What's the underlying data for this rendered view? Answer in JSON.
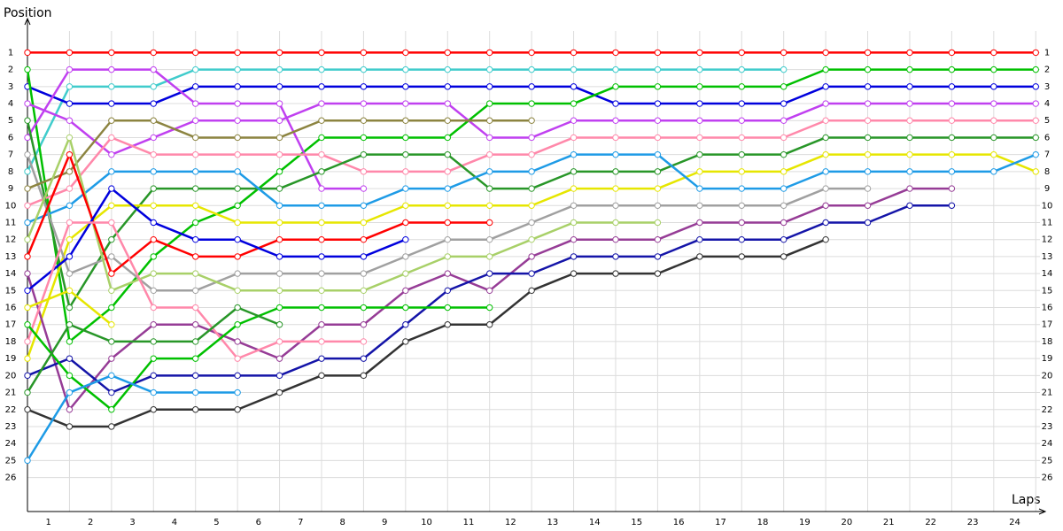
{
  "chart_data": {
    "type": "line",
    "y_label": "Position",
    "x_label": "Laps",
    "x": [
      0,
      1,
      2,
      3,
      4,
      5,
      6,
      7,
      8,
      9,
      10,
      11,
      12,
      13,
      14,
      15,
      16,
      17,
      18,
      19,
      20,
      21,
      22,
      23,
      24
    ],
    "xlim": [
      0,
      24.1
    ],
    "xticks": [
      1,
      2,
      3,
      4,
      5,
      6,
      7,
      8,
      9,
      10,
      11,
      12,
      13,
      14,
      15,
      16,
      17,
      18,
      19,
      20,
      21,
      22,
      23,
      24
    ],
    "ylim": [
      28,
      -1
    ],
    "inverted": true,
    "yticks": [
      1,
      2,
      3,
      4,
      5,
      6,
      7,
      8,
      9,
      10,
      11,
      12,
      13,
      14,
      15,
      16,
      17,
      18,
      19,
      20,
      21,
      22,
      23,
      24,
      25,
      26
    ],
    "grid": true,
    "series": [
      {
        "color": "#ff0000",
        "values": [
          1,
          1,
          1,
          1,
          1,
          1,
          1,
          1,
          1,
          1,
          1,
          1,
          1,
          1,
          1,
          1,
          1,
          1,
          1,
          1,
          1,
          1,
          1,
          1,
          1
        ]
      },
      {
        "color": "#40cccc",
        "values": [
          8,
          3,
          3,
          3,
          2,
          2,
          2,
          2,
          2,
          2,
          2,
          2,
          2,
          2,
          2,
          2,
          2,
          2,
          2,
          null,
          null,
          null,
          null,
          null,
          null
        ]
      },
      {
        "color": "#0000dd",
        "values": [
          3,
          4,
          4,
          4,
          3,
          3,
          3,
          3,
          3,
          3,
          3,
          3,
          3,
          3,
          4,
          4,
          4,
          4,
          4,
          3,
          3,
          3,
          3,
          3,
          3
        ]
      },
      {
        "color": "#00c000",
        "values": [
          2,
          18,
          16,
          13,
          11,
          10,
          8,
          6,
          6,
          6,
          6,
          4,
          4,
          4,
          3,
          3,
          3,
          3,
          3,
          2,
          2,
          2,
          2,
          2,
          2
        ]
      },
      {
        "color": "#c040f0",
        "values": [
          6,
          2,
          2,
          2,
          4,
          4,
          4,
          9,
          9,
          null,
          null,
          null,
          null,
          null,
          null,
          null,
          null,
          null,
          null,
          null,
          null,
          null,
          null,
          null,
          null
        ]
      },
      {
        "color": "#c040f0",
        "values": [
          4,
          5,
          7,
          6,
          5,
          5,
          5,
          4,
          4,
          4,
          4,
          6,
          6,
          5,
          5,
          5,
          5,
          5,
          5,
          4,
          4,
          4,
          4,
          4,
          4
        ]
      },
      {
        "color": "#ff88aa",
        "values": [
          10,
          9,
          6,
          7,
          7,
          7,
          7,
          7,
          8,
          8,
          8,
          7,
          7,
          6,
          6,
          6,
          6,
          6,
          6,
          5,
          5,
          5,
          5,
          5,
          5
        ]
      },
      {
        "color": "#289628",
        "values": [
          5,
          16,
          12,
          9,
          9,
          9,
          9,
          8,
          7,
          7,
          7,
          9,
          9,
          8,
          8,
          8,
          7,
          7,
          7,
          6,
          6,
          6,
          6,
          6,
          6
        ]
      },
      {
        "color": "#e6e600",
        "values": [
          19,
          12,
          10,
          10,
          10,
          11,
          11,
          11,
          11,
          10,
          10,
          10,
          10,
          9,
          9,
          9,
          8,
          8,
          8,
          7,
          7,
          7,
          7,
          7,
          8
        ]
      },
      {
        "color": "#1e9be6",
        "values": [
          11,
          10,
          8,
          8,
          8,
          8,
          10,
          10,
          10,
          9,
          9,
          8,
          8,
          7,
          7,
          7,
          9,
          9,
          9,
          8,
          8,
          8,
          8,
          8,
          7
        ]
      },
      {
        "color": "#a0a0a0",
        "values": [
          7,
          14,
          13,
          15,
          15,
          14,
          14,
          14,
          14,
          13,
          12,
          12,
          11,
          10,
          10,
          10,
          10,
          10,
          10,
          9,
          9,
          null,
          null,
          null,
          null
        ]
      },
      {
        "color": "#8c8440",
        "values": [
          9,
          8,
          5,
          5,
          6,
          6,
          6,
          5,
          5,
          5,
          5,
          5,
          5,
          null,
          null,
          null,
          null,
          null,
          null,
          null,
          null,
          null,
          null,
          null,
          null
        ]
      },
      {
        "color": "#a8d068",
        "values": [
          12,
          6,
          15,
          14,
          14,
          15,
          15,
          15,
          15,
          14,
          13,
          13,
          12,
          11,
          11,
          11,
          null,
          null,
          null,
          null,
          null,
          null,
          null,
          null,
          null
        ]
      },
      {
        "color": "#963c96",
        "values": [
          14,
          22,
          19,
          17,
          17,
          18,
          19,
          17,
          17,
          15,
          14,
          15,
          13,
          12,
          12,
          12,
          11,
          11,
          11,
          10,
          10,
          9,
          9,
          null,
          null
        ]
      },
      {
        "color": "#1414a8",
        "values": [
          20,
          19,
          21,
          20,
          20,
          20,
          20,
          19,
          19,
          17,
          15,
          14,
          14,
          13,
          13,
          13,
          12,
          12,
          12,
          11,
          11,
          10,
          10,
          null,
          null
        ]
      },
      {
        "color": "#333333",
        "values": [
          22,
          23,
          23,
          22,
          22,
          22,
          21,
          20,
          20,
          18,
          17,
          17,
          15,
          14,
          14,
          14,
          13,
          13,
          13,
          12,
          null,
          null,
          null,
          null,
          null
        ]
      },
      {
        "color": "#ff0000",
        "values": [
          13,
          7,
          14,
          12,
          13,
          13,
          12,
          12,
          12,
          11,
          11,
          11,
          null,
          null,
          null,
          null,
          null,
          null,
          null,
          null,
          null,
          null,
          null,
          null,
          null
        ]
      },
      {
        "color": "#0000dd",
        "values": [
          15,
          13,
          9,
          11,
          12,
          12,
          13,
          13,
          13,
          12,
          null,
          null,
          null,
          null,
          null,
          null,
          null,
          null,
          null,
          null,
          null,
          null,
          null,
          null,
          null
        ]
      },
      {
        "color": "#ff88aa",
        "values": [
          18,
          11,
          11,
          16,
          16,
          19,
          18,
          18,
          18,
          null,
          null,
          null,
          null,
          null,
          null,
          null,
          null,
          null,
          null,
          null,
          null,
          null,
          null,
          null,
          null
        ]
      },
      {
        "color": "#e6e600",
        "values": [
          16,
          15,
          17,
          null,
          null,
          null,
          null,
          null,
          null,
          null,
          null,
          null,
          null,
          null,
          null,
          null,
          null,
          null,
          null,
          null,
          null,
          null,
          null,
          null,
          null
        ]
      },
      {
        "color": "#00c000",
        "values": [
          17,
          20,
          22,
          19,
          19,
          17,
          16,
          16,
          16,
          16,
          16,
          16,
          null,
          null,
          null,
          null,
          null,
          null,
          null,
          null,
          null,
          null,
          null,
          null,
          null
        ]
      },
      {
        "color": "#289628",
        "values": [
          21,
          17,
          18,
          18,
          18,
          16,
          17,
          null,
          null,
          null,
          null,
          null,
          null,
          null,
          null,
          null,
          null,
          null,
          null,
          null,
          null,
          null,
          null,
          null,
          null
        ]
      },
      {
        "color": "#1e9be6",
        "values": [
          25,
          21,
          20,
          21,
          21,
          21,
          null,
          null,
          null,
          null,
          null,
          null,
          null,
          null,
          null,
          null,
          null,
          null,
          null,
          null,
          null,
          null,
          null,
          null,
          null
        ]
      }
    ]
  }
}
